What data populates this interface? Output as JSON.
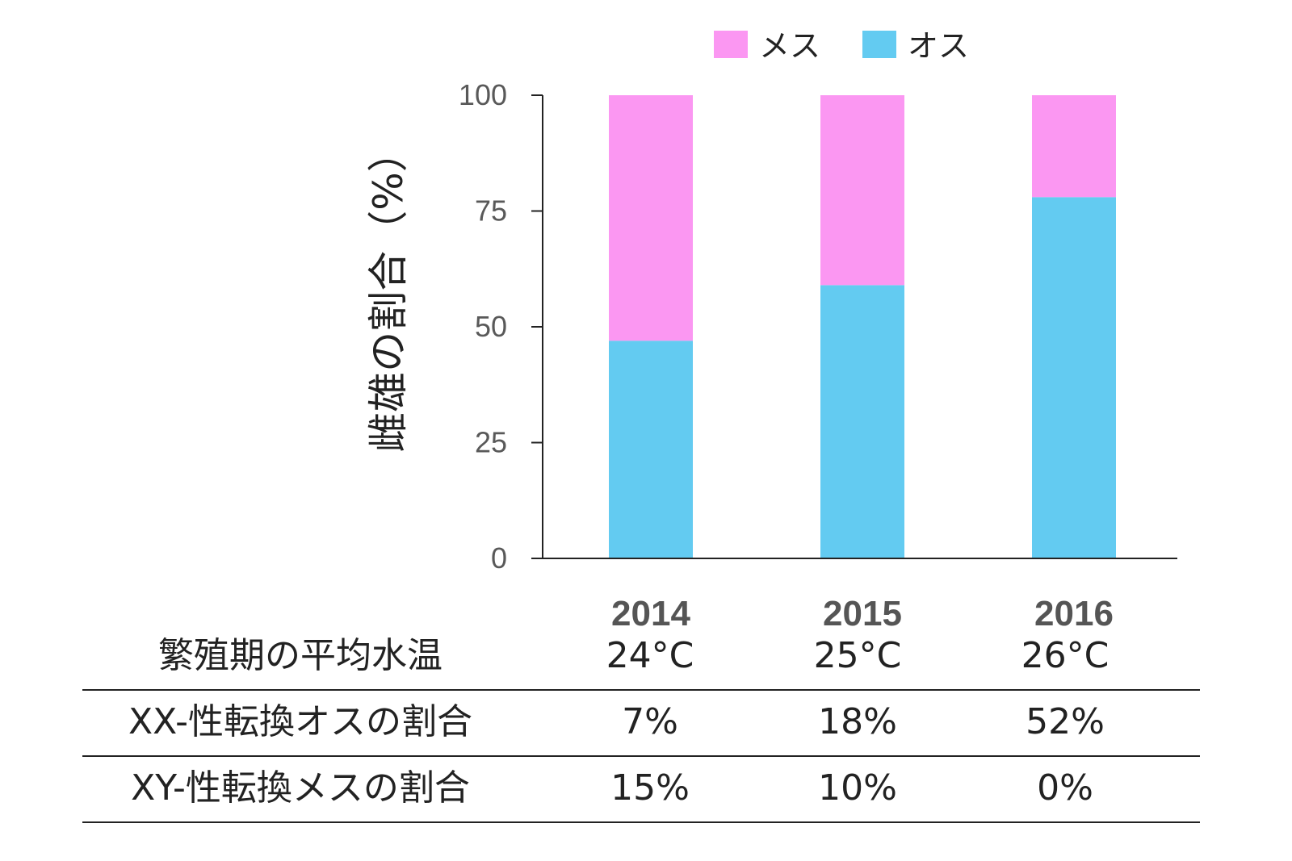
{
  "chart_data": {
    "type": "bar",
    "stacked": true,
    "categories": [
      "2014",
      "2015",
      "2016"
    ],
    "series": [
      {
        "name": "オス",
        "color": "#63cbf1",
        "values": [
          47,
          59,
          78
        ]
      },
      {
        "name": "メス",
        "color": "#fb97f2",
        "values": [
          53,
          41,
          22
        ]
      }
    ],
    "ylabel": "雌雄の割合（%）",
    "ylim": [
      0,
      100
    ],
    "yticks": [
      "0",
      "25",
      "50",
      "75",
      "100"
    ],
    "legend_position": "top",
    "grid": false
  },
  "table": {
    "rows": [
      {
        "label": "繁殖期の平均水温",
        "values": [
          "24°C",
          "25°C",
          "26°C"
        ]
      },
      {
        "label": "XX-性転換オスの割合",
        "values": [
          "7%",
          "18%",
          "52%"
        ]
      },
      {
        "label": "XY-性転換メスの割合",
        "values": [
          "15%",
          "10%",
          "0%"
        ]
      }
    ]
  }
}
